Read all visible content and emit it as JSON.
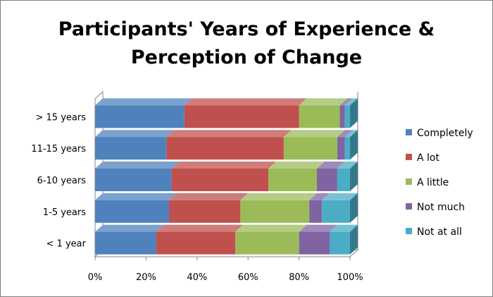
{
  "chart_data": {
    "type": "bar",
    "orientation": "horizontal",
    "stacked": "percent",
    "title": [
      "Participants' Years of Experience &",
      "Perception of Change"
    ],
    "categories": [
      "< 1 year",
      "1-5 years",
      "6-10 years",
      "11-15 years",
      "> 15 years"
    ],
    "series": [
      {
        "name": "Completely",
        "color": "#4f81bd",
        "values": [
          24,
          29,
          30,
          28,
          35
        ]
      },
      {
        "name": "A lot",
        "color": "#c0504d",
        "values": [
          31,
          28,
          38,
          46,
          45
        ]
      },
      {
        "name": "A little",
        "color": "#9bbb59",
        "values": [
          25,
          27,
          19,
          21,
          16
        ]
      },
      {
        "name": "Not much",
        "color": "#8064a2",
        "values": [
          12,
          5,
          8,
          3,
          2
        ]
      },
      {
        "name": "Not at all",
        "color": "#4bacc6",
        "values": [
          8,
          11,
          5,
          2,
          2
        ]
      }
    ],
    "xlim": [
      0,
      100
    ],
    "xticks": [
      "0%",
      "20%",
      "40%",
      "60%",
      "80%",
      "100%"
    ],
    "xlabel": "",
    "ylabel": "",
    "legend_position": "right",
    "grid": false
  }
}
